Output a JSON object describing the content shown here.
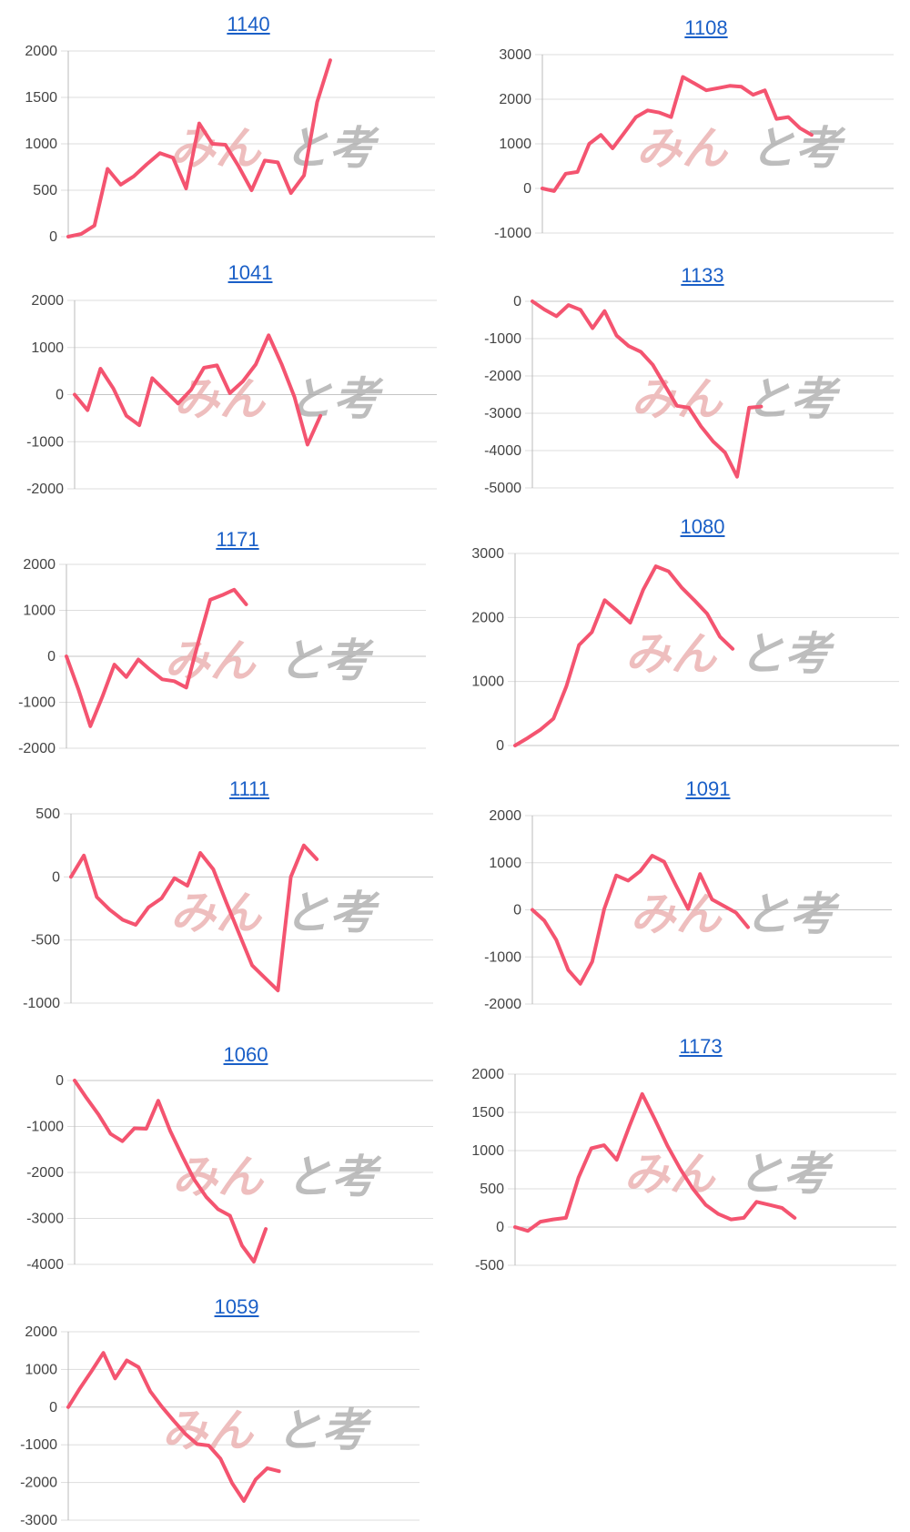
{
  "watermark": {
    "part1": "みん",
    "part2": "と考"
  },
  "colors": {
    "line": "#f45470",
    "grid": "#dddddd",
    "axis": "#bbbbbb",
    "title_link": "#1a5fc7"
  },
  "chart_data": [
    {
      "type": "line",
      "title": "1140",
      "yticks": [
        0,
        500,
        1000,
        1500,
        2000
      ],
      "ylim": [
        0,
        2000
      ],
      "values": [
        0,
        30,
        120,
        730,
        560,
        650,
        780,
        900,
        850,
        520,
        1220,
        1000,
        990,
        760,
        500,
        820,
        800,
        470,
        660,
        1450,
        1900
      ]
    },
    {
      "type": "line",
      "title": "1108",
      "yticks": [
        -1000,
        0,
        1000,
        2000,
        3000
      ],
      "ylim": [
        -1000,
        3000
      ],
      "values": [
        0,
        -60,
        330,
        370,
        1000,
        1200,
        900,
        1250,
        1600,
        1750,
        1700,
        1600,
        2500,
        2350,
        2200,
        2250,
        2300,
        2280,
        2100,
        2200,
        1560,
        1600,
        1350,
        1200
      ]
    },
    {
      "type": "line",
      "title": "1041",
      "yticks": [
        -2000,
        -1000,
        0,
        1000,
        2000
      ],
      "ylim": [
        -2000,
        2000
      ],
      "values": [
        0,
        -330,
        550,
        130,
        -450,
        -650,
        350,
        80,
        -190,
        100,
        570,
        620,
        30,
        280,
        640,
        1260,
        650,
        -50,
        -1060,
        -450
      ]
    },
    {
      "type": "line",
      "title": "1133",
      "yticks": [
        -5000,
        -4000,
        -3000,
        -2000,
        -1000,
        0
      ],
      "ylim": [
        -5000,
        0
      ],
      "values": [
        0,
        -220,
        -400,
        -100,
        -230,
        -720,
        -260,
        -920,
        -1200,
        -1350,
        -1700,
        -2250,
        -2800,
        -2850,
        -3350,
        -3750,
        -4050,
        -4700,
        -2850,
        -2820
      ]
    },
    {
      "type": "line",
      "title": "1171",
      "yticks": [
        -2000,
        -1000,
        0,
        1000,
        2000
      ],
      "ylim": [
        -2000,
        2000
      ],
      "values": [
        0,
        -720,
        -1520,
        -880,
        -180,
        -450,
        -70,
        -300,
        -500,
        -540,
        -680,
        300,
        1230,
        1330,
        1450,
        1130
      ]
    },
    {
      "type": "line",
      "title": "1080",
      "yticks": [
        0,
        1000,
        2000,
        3000
      ],
      "ylim": [
        0,
        3000
      ],
      "values": [
        0,
        120,
        250,
        420,
        920,
        1570,
        1770,
        2270,
        2100,
        1920,
        2430,
        2800,
        2720,
        2470,
        2270,
        2060,
        1700,
        1510
      ]
    },
    {
      "type": "line",
      "title": "1111",
      "yticks": [
        -1000,
        -500,
        0,
        500
      ],
      "ylim": [
        -1000,
        500
      ],
      "values": [
        0,
        170,
        -160,
        -260,
        -340,
        -380,
        -240,
        -170,
        -10,
        -70,
        190,
        60,
        -200,
        -450,
        -700,
        -800,
        -900,
        0,
        250,
        140
      ]
    },
    {
      "type": "line",
      "title": "1091",
      "yticks": [
        -2000,
        -1000,
        0,
        1000,
        2000
      ],
      "ylim": [
        -2000,
        2000
      ],
      "values": [
        0,
        -230,
        -640,
        -1280,
        -1570,
        -1100,
        20,
        730,
        620,
        820,
        1150,
        1020,
        510,
        20,
        760,
        220,
        80,
        -60,
        -370
      ]
    },
    {
      "type": "line",
      "title": "1060",
      "yticks": [
        -4000,
        -3000,
        -2000,
        -1000,
        0
      ],
      "ylim": [
        -4000,
        0
      ],
      "values": [
        0,
        -380,
        -740,
        -1160,
        -1320,
        -1040,
        -1050,
        -440,
        -1100,
        -1640,
        -2150,
        -2530,
        -2800,
        -2940,
        -3590,
        -3940,
        -3230
      ]
    },
    {
      "type": "line",
      "title": "1173",
      "yticks": [
        -500,
        0,
        500,
        1000,
        1500,
        2000
      ],
      "ylim": [
        -500,
        2000
      ],
      "values": [
        0,
        -50,
        70,
        100,
        120,
        650,
        1030,
        1070,
        880,
        1320,
        1740,
        1410,
        1060,
        760,
        500,
        290,
        170,
        100,
        120,
        330,
        290,
        250,
        120
      ]
    },
    {
      "type": "line",
      "title": "1059",
      "yticks": [
        -3000,
        -2000,
        -1000,
        0,
        1000,
        2000
      ],
      "ylim": [
        -3000,
        2000
      ],
      "values": [
        0,
        500,
        960,
        1440,
        760,
        1240,
        1060,
        420,
        10,
        -360,
        -710,
        -980,
        -1020,
        -1370,
        -2020,
        -2490,
        -1920,
        -1620,
        -1700
      ]
    }
  ]
}
